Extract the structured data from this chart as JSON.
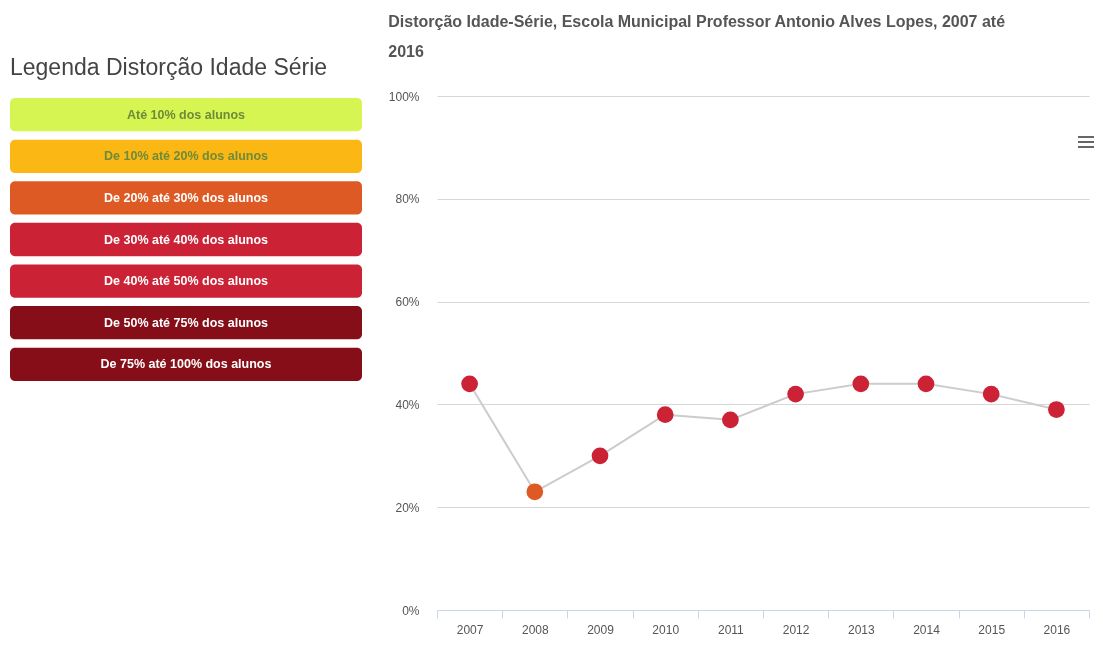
{
  "chart_data": [
    {
      "type": "other",
      "title": "Legenda Distorção Idade Série",
      "categories": [
        "Até 10% dos alunos",
        "De 10% até 20% dos alunos",
        "De 20% até 30% dos alunos",
        "De 30% até 40% dos alunos",
        "De 40% até 50% dos alunos",
        "De 50% até 75% dos alunos",
        "De 75% até 100% dos alunos"
      ],
      "colors": [
        "#d7f552",
        "#fbb814",
        "#de5a24",
        "#cc2236",
        "#cc2236",
        "#850e18",
        "#850e18"
      ]
    },
    {
      "type": "line",
      "title": "Distorção Idade-Série, Escola Municipal Professor Antonio Alves Lopes, 2007 até 2016",
      "categories": [
        "2007",
        "2008",
        "2009",
        "2010",
        "2011",
        "2012",
        "2013",
        "2014",
        "2015",
        "2016"
      ],
      "series": [
        {
          "color": "#cccccc",
          "values": [
            44,
            23,
            30,
            38,
            37,
            42,
            44,
            44,
            42,
            39
          ]
        }
      ],
      "colors": [
        "#cc2236",
        "#de5a24",
        "#cc2236",
        "#cc2236",
        "#cc2236",
        "#cc2236",
        "#cc2236",
        "#cc2236",
        "#cc2236",
        "#cc2236"
      ],
      "ylim": [
        0,
        100
      ],
      "yticks": [
        {
          "value": 0,
          "label": "0%"
        },
        {
          "value": 20,
          "label": "20%"
        },
        {
          "value": 40,
          "label": "40%"
        },
        {
          "value": 60,
          "label": "60%"
        },
        {
          "value": 80,
          "label": "80%"
        },
        {
          "value": 100,
          "label": "100%"
        }
      ],
      "grid": "y",
      "marker": "circle"
    }
  ]
}
